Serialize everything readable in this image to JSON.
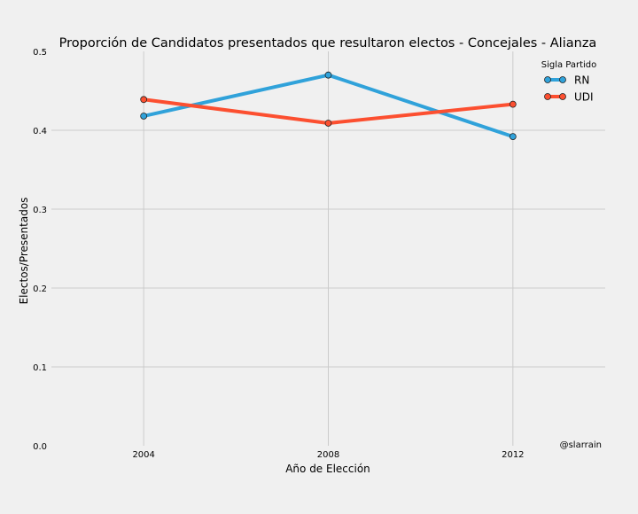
{
  "chart_data": {
    "type": "line",
    "title": "Proporción de Candidatos presentados que resultaron electos - Concejales - Alianza",
    "xlabel": "Año de Elección",
    "ylabel": "Electos/Presentados",
    "x": [
      2004,
      2008,
      2012
    ],
    "x_tick_labels": [
      "2004",
      "2008",
      "2012"
    ],
    "xlim": [
      2002,
      2014
    ],
    "ylim": [
      0,
      0.5
    ],
    "y_ticks": [
      0.0,
      0.1,
      0.2,
      0.3,
      0.4,
      0.5
    ],
    "y_tick_labels": [
      "0.0",
      "0.1",
      "0.2",
      "0.3",
      "0.4",
      "0.5"
    ],
    "grid": true,
    "legend": {
      "title": "Sigla Partido",
      "placement": "top-right"
    },
    "series": [
      {
        "name": "RN",
        "values": [
          0.418,
          0.47,
          0.392
        ],
        "color": "#30a2da"
      },
      {
        "name": "UDI",
        "values": [
          0.439,
          0.409,
          0.433
        ],
        "color": "#fc4f30"
      }
    ],
    "annotation": "@slarrain"
  }
}
